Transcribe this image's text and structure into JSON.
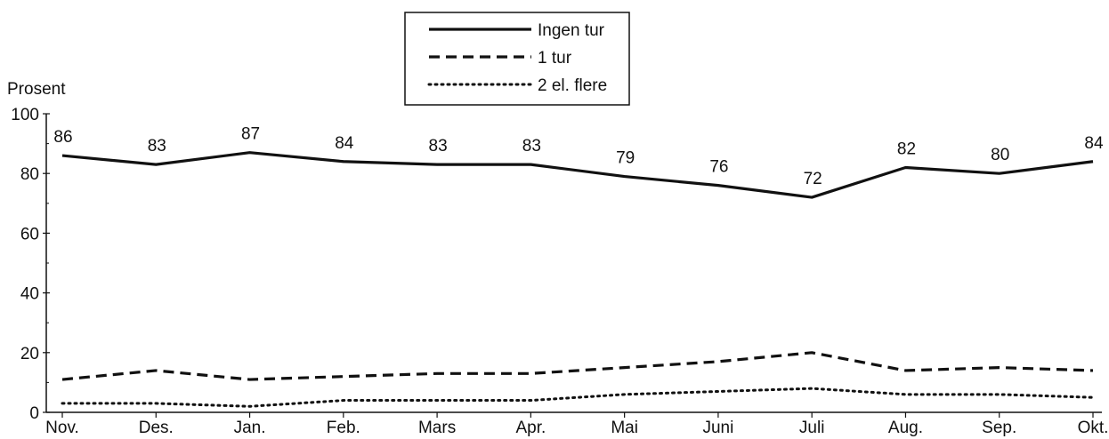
{
  "chart_data": {
    "type": "line",
    "ylabel": "Prosent",
    "xlabel": "",
    "title": "",
    "ylim": [
      0,
      100
    ],
    "yticks": [
      0,
      20,
      40,
      60,
      80,
      100
    ],
    "grid": false,
    "legend_position": "top-center",
    "categories": [
      "Nov.",
      "Des.",
      "Jan.",
      "Feb.",
      "Mars",
      "Apr.",
      "Mai",
      "Juni",
      "Juli",
      "Aug.",
      "Sep.",
      "Okt."
    ],
    "series": [
      {
        "name": "Ingen tur",
        "style": "solid",
        "color": "#111111",
        "values": [
          86,
          83,
          87,
          84,
          83,
          83,
          79,
          76,
          72,
          82,
          80,
          84
        ],
        "labels": [
          "86",
          "83",
          "87",
          "84",
          "83",
          "83",
          "79",
          "76",
          "72",
          "82",
          "80",
          "84"
        ]
      },
      {
        "name": "1 tur",
        "style": "dashed",
        "color": "#111111",
        "values": [
          11,
          14,
          11,
          12,
          13,
          13,
          15,
          17,
          20,
          14,
          15,
          14
        ]
      },
      {
        "name": "2 el. flere",
        "style": "dotted",
        "color": "#111111",
        "values": [
          3,
          3,
          2,
          4,
          4,
          4,
          6,
          7,
          8,
          6,
          6,
          5
        ]
      }
    ]
  }
}
